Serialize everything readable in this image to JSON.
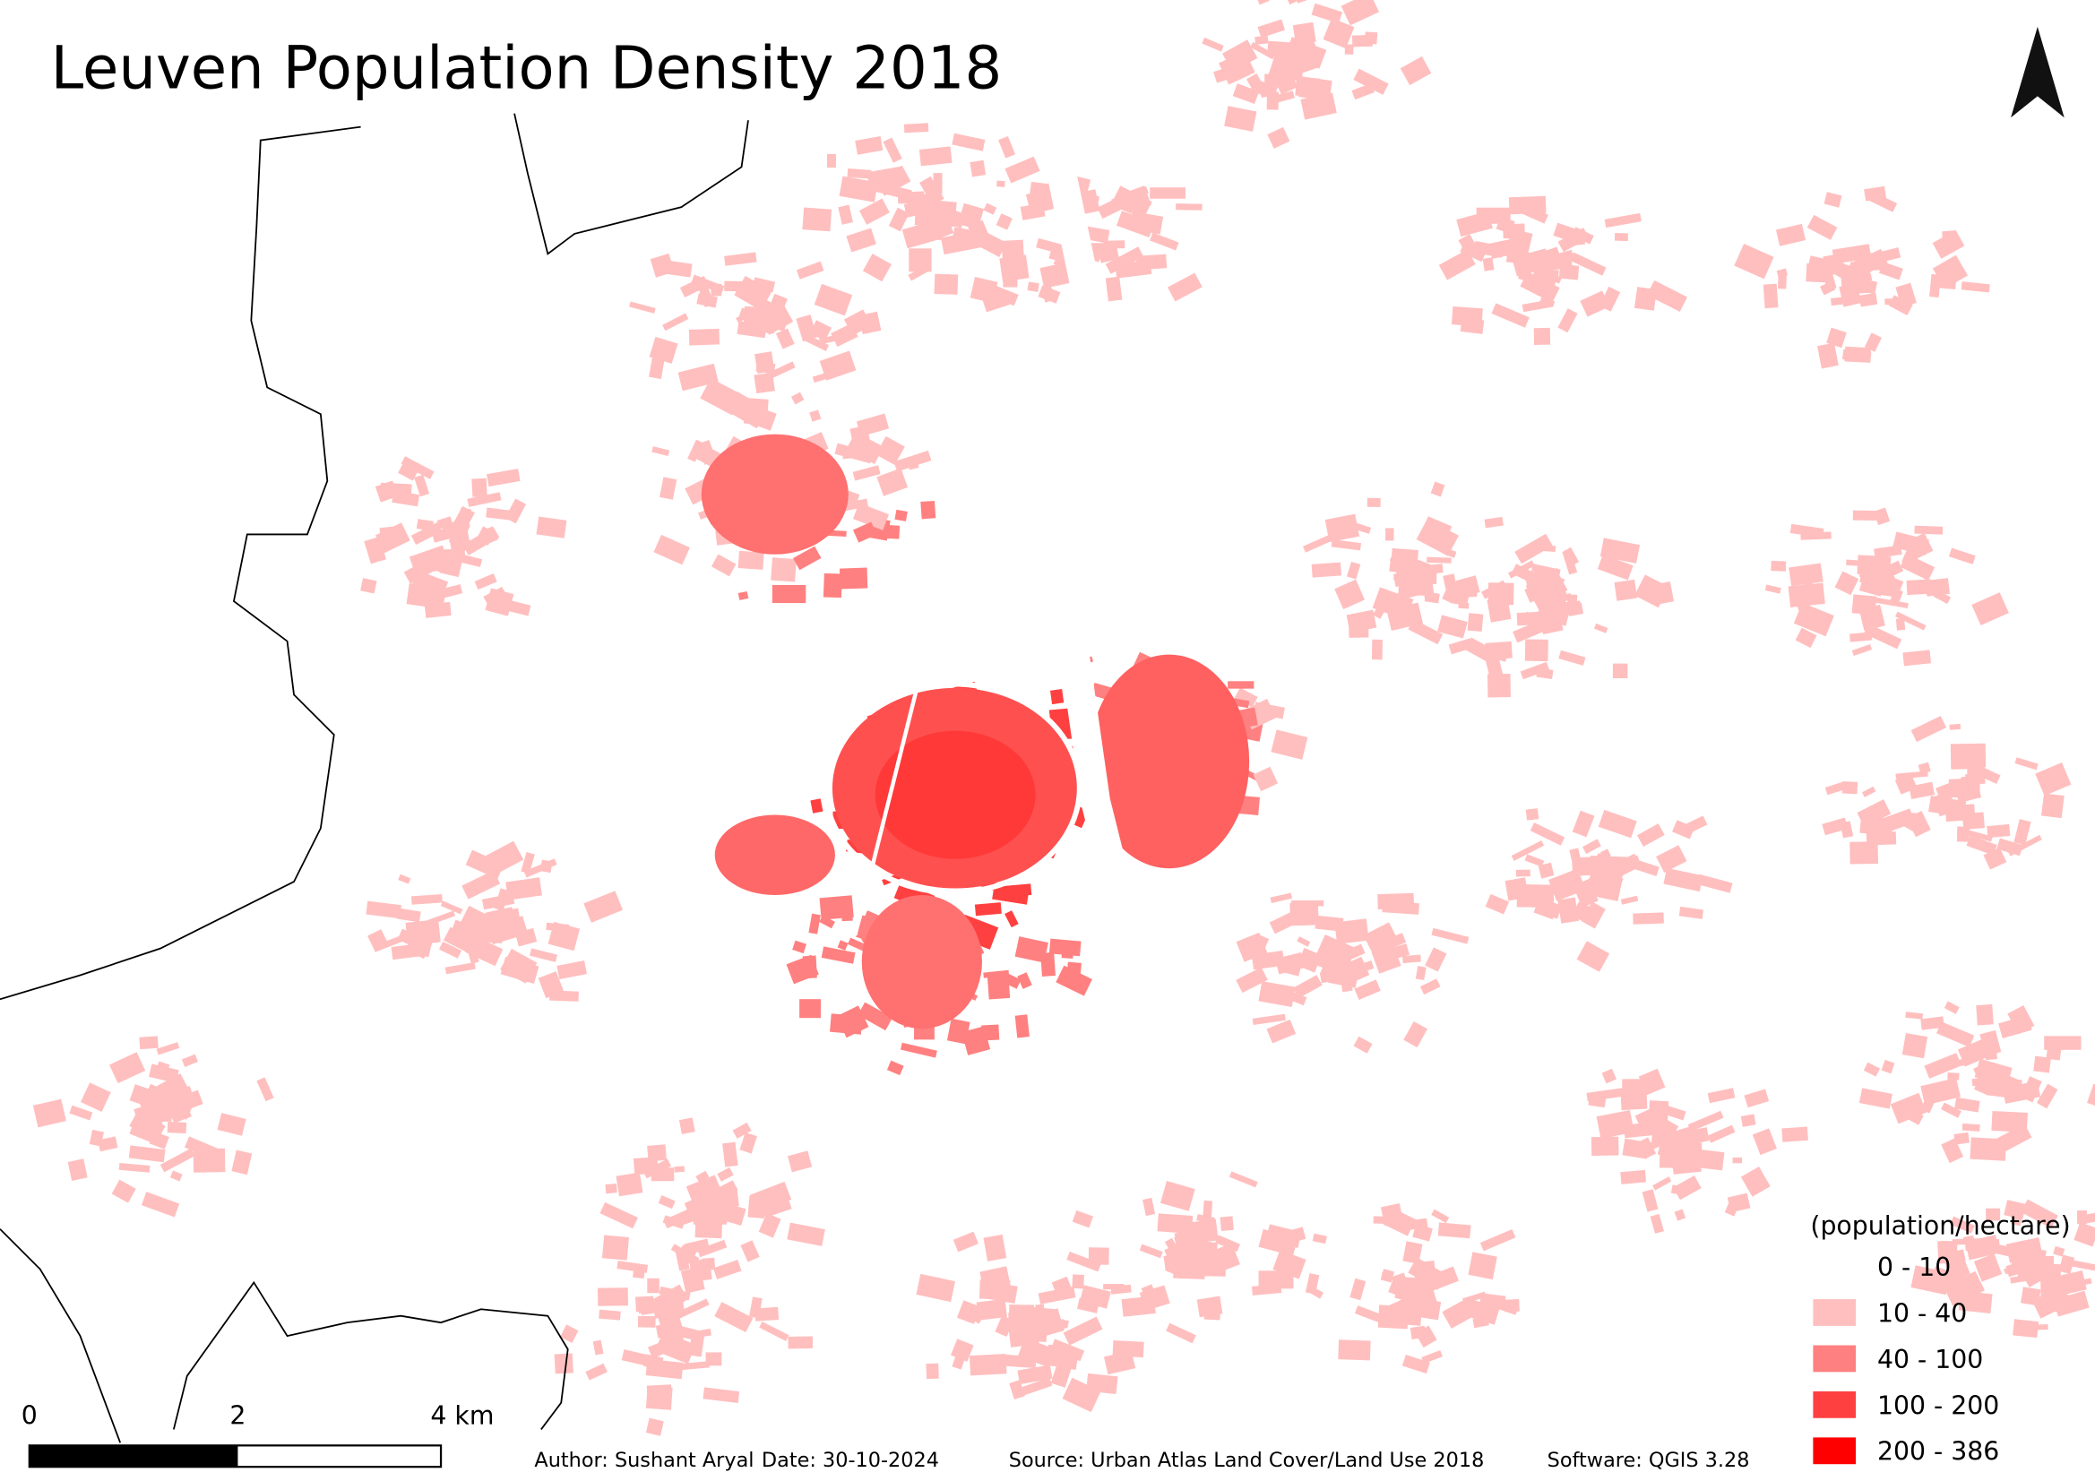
{
  "title": "Leuven Population Density 2018",
  "legend": {
    "title": "(population/hectare)",
    "items": [
      {
        "label": "0 - 10",
        "color": "#ffffff"
      },
      {
        "label": "10 - 40",
        "color": "#ffbfbf"
      },
      {
        "label": "40 - 100",
        "color": "#ff8080"
      },
      {
        "label": "100 - 200",
        "color": "#ff4040"
      },
      {
        "label": "200 - 386",
        "color": "#ff0000"
      }
    ]
  },
  "scale_bar": {
    "labels": [
      "0",
      "2",
      "4 km"
    ]
  },
  "credits": [
    "Author: Sushant Aryal",
    "Date: 30-10-2024",
    "Source: Urban Atlas Land Cover/Land Use 2018",
    "Software: QGIS 3.28"
  ]
}
